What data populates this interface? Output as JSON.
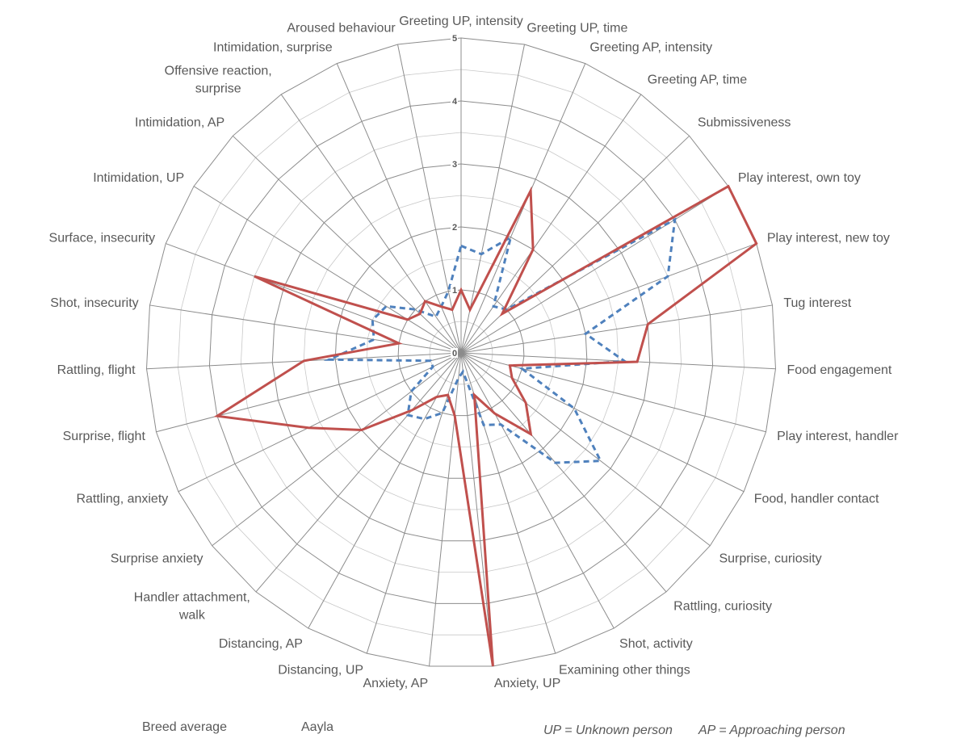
{
  "chart_data": {
    "type": "radar",
    "title": "",
    "categories": [
      "Greeting UP, intensity",
      "Greeting UP, time",
      "Greeting AP, intensity",
      "Greeting AP, time",
      "Submissiveness",
      "Play interest, own toy",
      "Play interest, new toy",
      "Tug interest",
      "Food engagement",
      "Play interest, handler",
      "Food, handler contact",
      "Surprise, curiosity",
      "Rattling, curiosity",
      "Shot, activity",
      "Examining other things",
      "Anxiety, UP",
      "Anxiety, AP",
      "Distancing, UP",
      "Distancing, AP",
      "Handler attachment,\nwalk",
      "Surprise anxiety",
      "Rattling, anxiety",
      "Surprise, flight",
      "Rattling, flight",
      "Shot, insecurity",
      "Surface, insecurity",
      "Intimidation, UP",
      "Intimidation, AP",
      "Offensive reaction,\nsurprise",
      "Intimidation, surprise",
      "Aroused behaviour"
    ],
    "rlim": [
      0,
      5
    ],
    "ticks": [
      "0",
      "1",
      "2",
      "3",
      "4",
      "5"
    ],
    "series": [
      {
        "name": "Breed average",
        "color": "#4f81bd",
        "style": "dashed",
        "values": [
          1.7,
          1.6,
          2.0,
          0.9,
          1.0,
          4.0,
          3.5,
          2.0,
          2.6,
          1.0,
          2.0,
          2.8,
          2.3,
          1.3,
          1.2,
          0.3,
          0.4,
          1.0,
          1.2,
          1.3,
          1.0,
          0.5,
          0.5,
          2.1,
          1.4,
          1.5,
          1.4,
          1.0,
          0.7,
          0.8,
          1.0
        ]
      },
      {
        "name": "Aayla",
        "color": "#c0504d",
        "style": "solid",
        "values": [
          1.0,
          0.7,
          2.8,
          2.0,
          0.9,
          5.0,
          5.0,
          3.0,
          2.8,
          0.8,
          0.9,
          1.3,
          1.7,
          1.1,
          0.7,
          5.0,
          1.0,
          0.7,
          0.8,
          1.2,
          2.0,
          2.7,
          4.0,
          2.5,
          1.0,
          3.5,
          1.0,
          0.9,
          1.0,
          0.8,
          0.7
        ]
      }
    ]
  },
  "legend": {
    "items": [
      {
        "label": "Breed average",
        "color": "#4f81bd"
      },
      {
        "label": "Aayla",
        "color": "#c0504d"
      }
    ],
    "notes": [
      "UP = Unknown person",
      "AP = Approaching person"
    ]
  }
}
